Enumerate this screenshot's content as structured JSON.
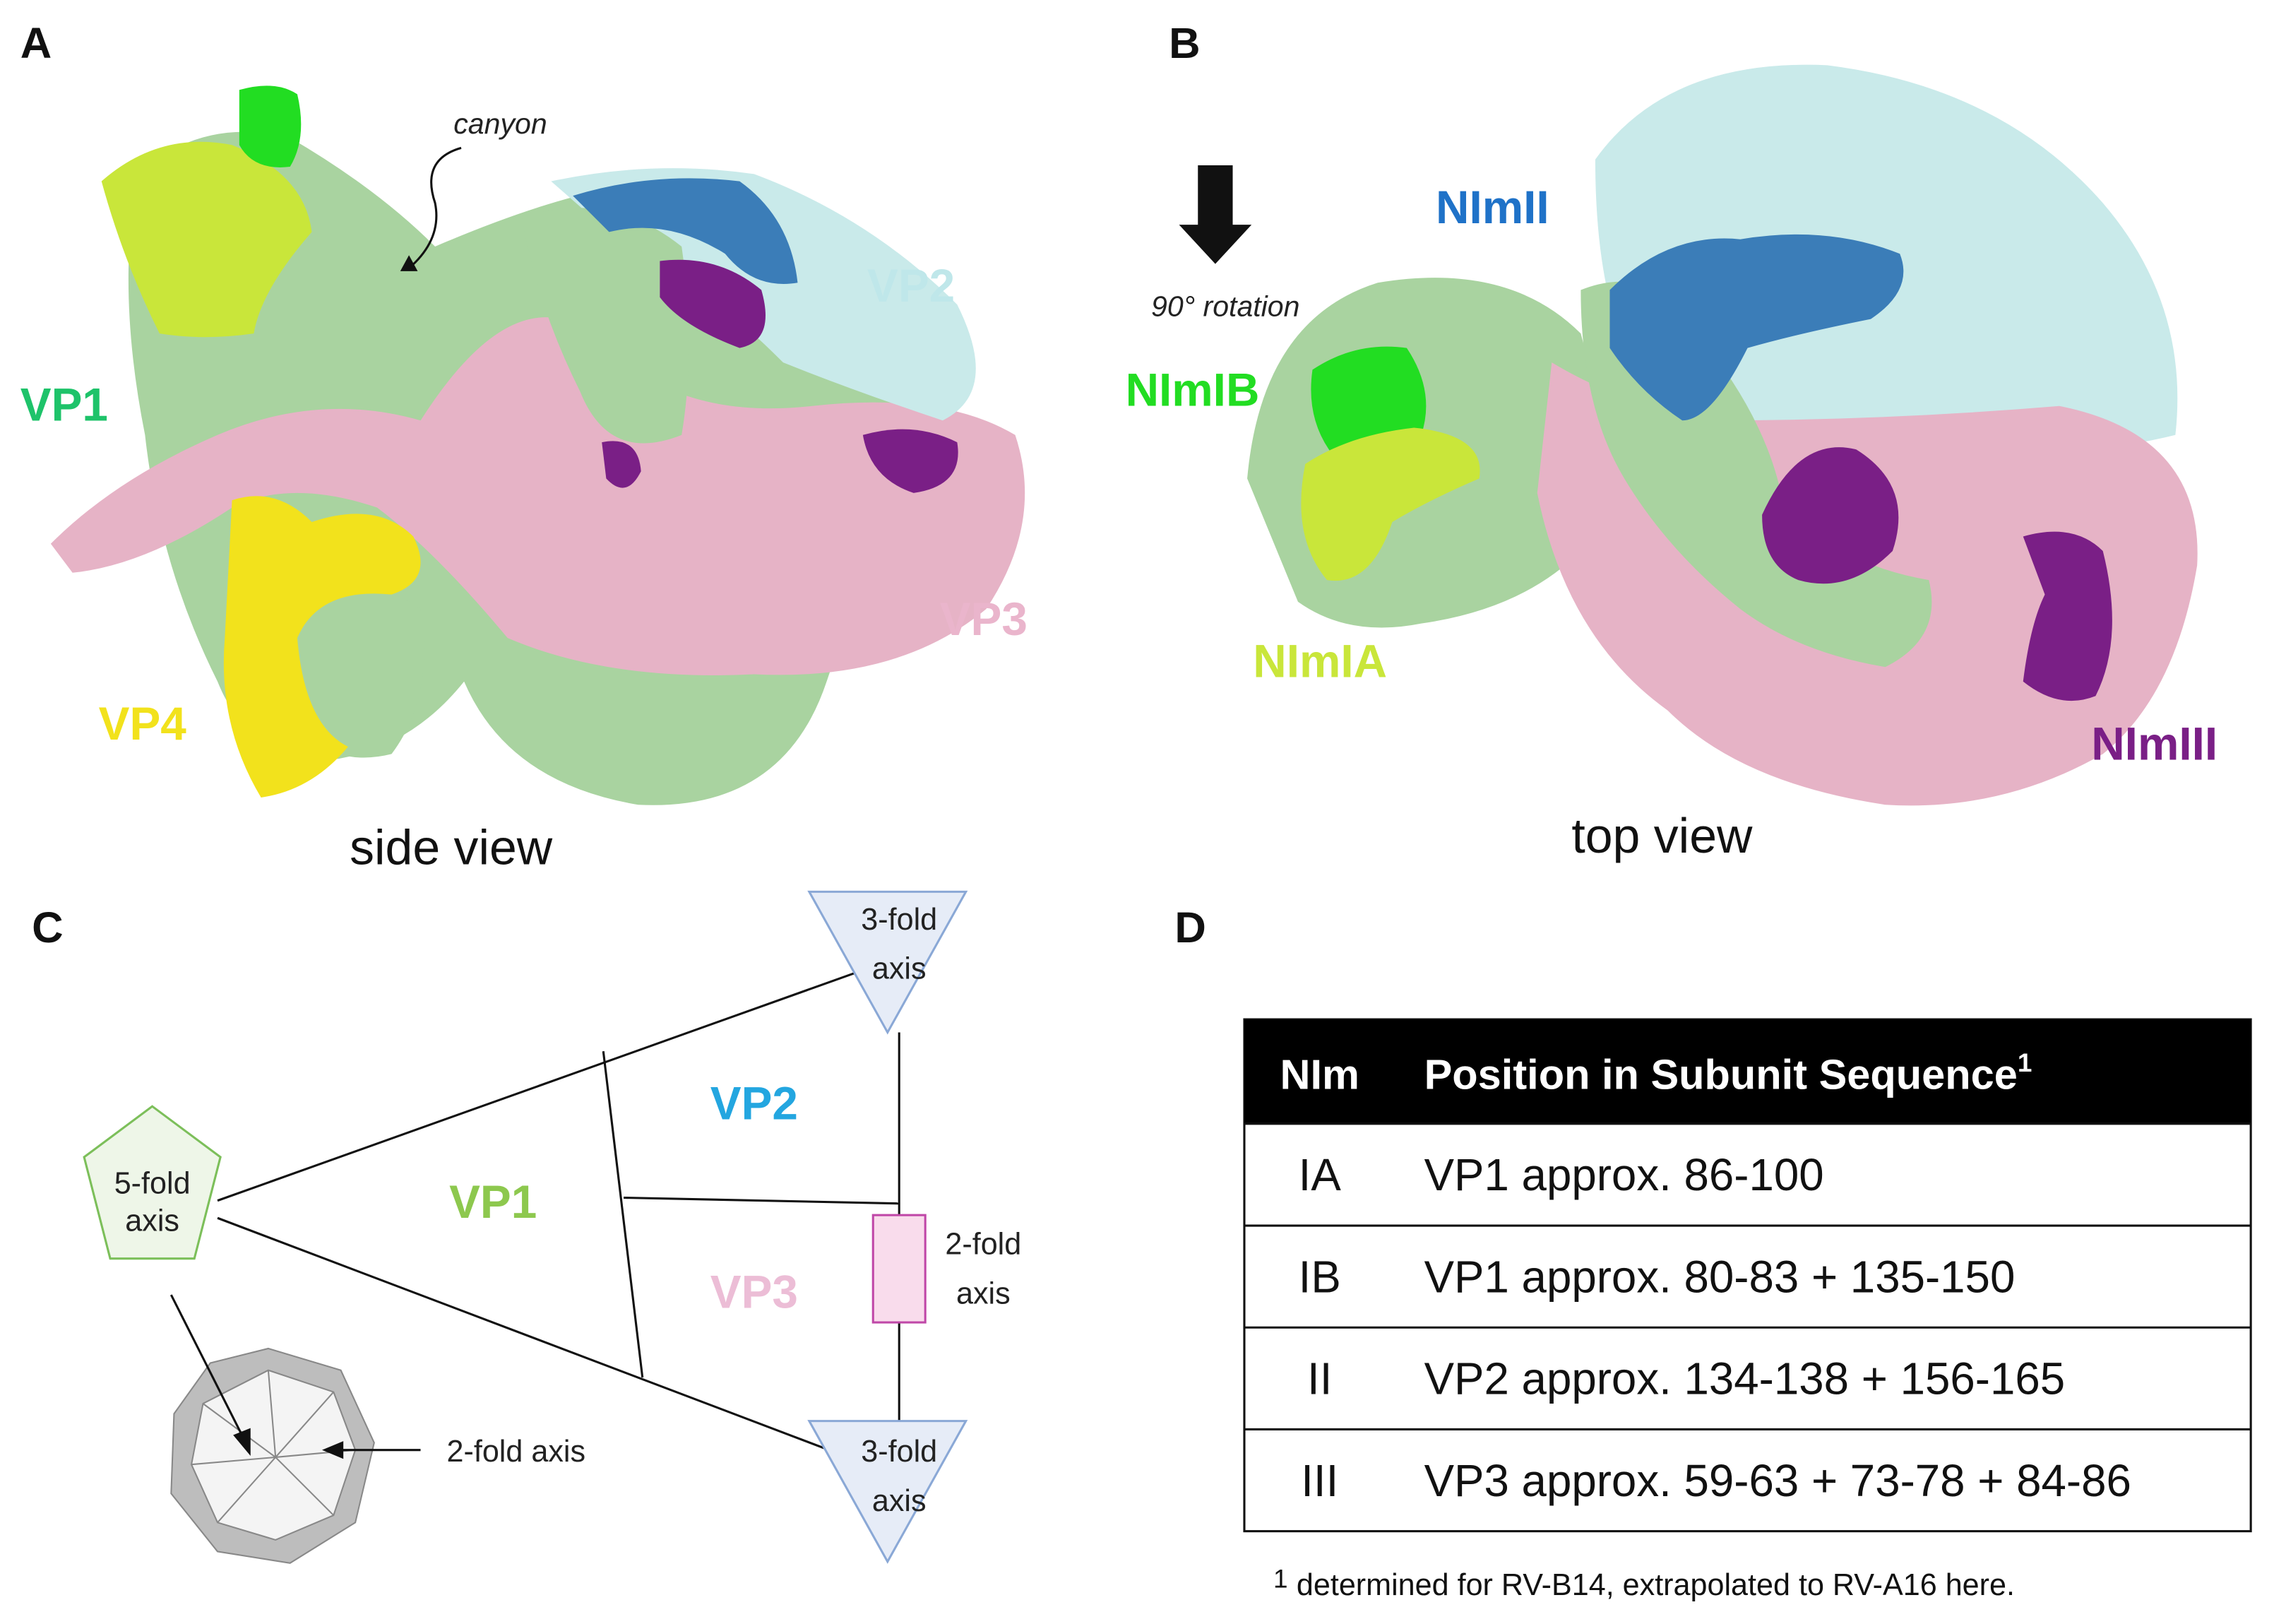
{
  "panel_a": {
    "letter": "A",
    "caption": "side view",
    "canyon": "canyon",
    "vp1": "VP1",
    "vp2": "VP2",
    "vp3": "VP3",
    "vp4": "VP4"
  },
  "panel_b": {
    "letter": "B",
    "caption": "top view",
    "rotation": "90° rotation",
    "nimib": "NImIB",
    "nimia": "NImIA",
    "nimii": "NImII",
    "nimiii": "NImIII"
  },
  "panel_c": {
    "letter": "C",
    "five_fold": [
      "5-fold",
      "axis"
    ],
    "three_fold_top": [
      "3-fold",
      "axis"
    ],
    "three_fold_bottom": [
      "3-fold",
      "axis"
    ],
    "two_fold": [
      "2-fold",
      "axis"
    ],
    "two_fold_icosahedron": "2-fold axis",
    "vp1": "VP1",
    "vp2": "VP2",
    "vp3": "VP3"
  },
  "panel_d": {
    "letter": "D",
    "table": {
      "header": [
        "NIm",
        "Position in Subunit Sequence"
      ],
      "header_superscript": "1",
      "rows": [
        [
          "IA",
          "VP1 approx. 86-100"
        ],
        [
          "IB",
          "VP1 approx. 80-83 + 135-150"
        ],
        [
          "II",
          "VP2 approx. 134-138 + 156-165"
        ],
        [
          "III",
          "VP3 approx. 59-63 + 73-78 + 84-86"
        ]
      ]
    },
    "footnote_mark": "1",
    "footnote": "determined for RV-B14, extrapolated to RV-A16 here."
  }
}
